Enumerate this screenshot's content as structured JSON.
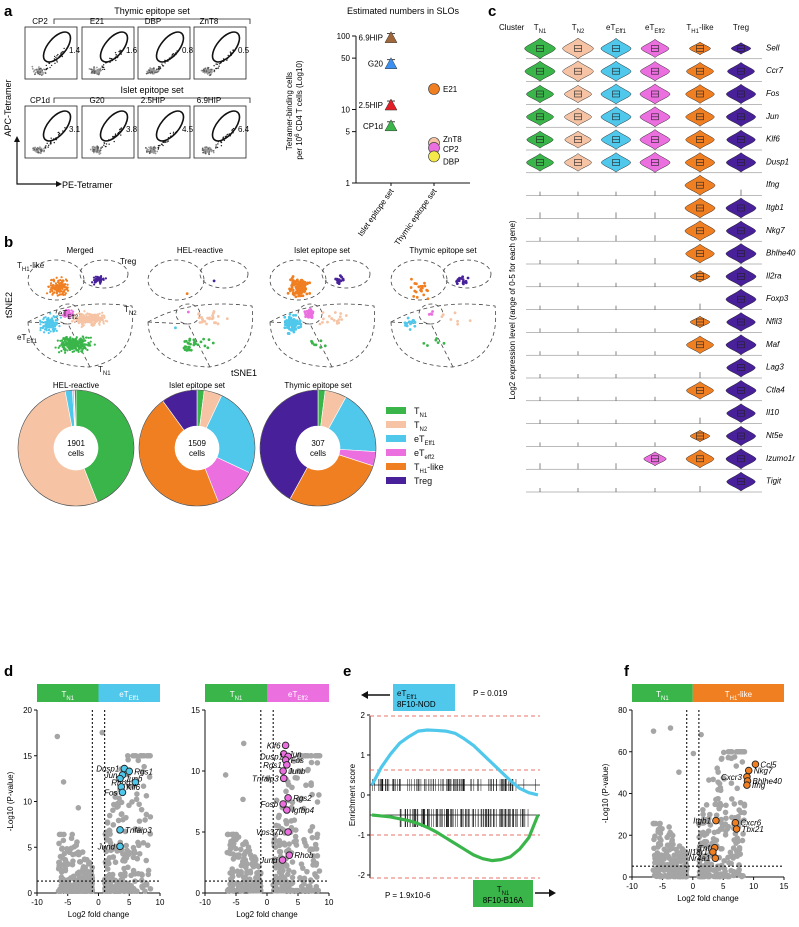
{
  "panels": {
    "a": "a",
    "b": "b",
    "c": "c",
    "d": "d",
    "e": "e",
    "f": "f"
  },
  "colors": {
    "TN1": "#3ab54a",
    "TN2": "#f6c4a4",
    "eTEff1": "#4fc8ec",
    "eTeff2": "#ec6fe0",
    "TH1like": "#f07f22",
    "Treg": "#47209a",
    "grey": "#a8a8a8",
    "dot": "#222222"
  },
  "panel_a": {
    "thymic_header": "Thymic epitope set",
    "islet_header": "Islet epitope set",
    "y_axis": "APC-Tetramer",
    "x_axis": "PE-Tetramer",
    "flow_plots": [
      {
        "name": "CP2",
        "pct": "1.4"
      },
      {
        "name": "E21",
        "pct": "1.6"
      },
      {
        "name": "DBP",
        "pct": "0.8"
      },
      {
        "name": "ZnT8",
        "pct": "0.5"
      },
      {
        "name": "CP1d",
        "pct": "3.1"
      },
      {
        "name": "G20",
        "pct": "3.8"
      },
      {
        "name": "2.5HIP",
        "pct": "4.5"
      },
      {
        "name": "6.9HIP",
        "pct": "6.4"
      }
    ]
  },
  "chart_data": [
    {
      "id": "a-estimated-numbers",
      "type": "scatter",
      "title": "Estimated numbers in SLOs",
      "ylabel": "Tetramer-binding cells per 10^6 CD4 T cells (Log10)",
      "yscale": "log",
      "ylim": [
        1,
        100
      ],
      "yticks": [
        1,
        5,
        10,
        50,
        100
      ],
      "categories": [
        "Islet epitope set",
        "Thymic epitope set"
      ],
      "points": [
        {
          "name": "6.9HIP",
          "category": "Islet epitope set",
          "y": 95,
          "color": "#a0683a",
          "shape": "triangle-up"
        },
        {
          "name": "G20",
          "category": "Islet epitope set",
          "y": 42,
          "color": "#3c8ff0",
          "shape": "triangle-up"
        },
        {
          "name": "2.5HIP",
          "category": "Islet epitope set",
          "y": 11.5,
          "color": "#e41e26",
          "shape": "triangle-up"
        },
        {
          "name": "CP1d",
          "category": "Islet epitope set",
          "y": 6,
          "color": "#3ab54a",
          "shape": "triangle-up"
        },
        {
          "name": "E21",
          "category": "Thymic epitope set",
          "y": 19,
          "color": "#f07f22",
          "shape": "circle"
        },
        {
          "name": "ZnT8",
          "category": "Thymic epitope set",
          "y": 3.5,
          "color": "#f6c4a4",
          "shape": "circle"
        },
        {
          "name": "CP2",
          "category": "Thymic epitope set",
          "y": 3.0,
          "color": "#ec6fe0",
          "shape": "circle"
        },
        {
          "name": "DBP",
          "category": "Thymic epitope set",
          "y": 2.3,
          "color": "#f5e94a",
          "shape": "circle"
        }
      ]
    },
    {
      "id": "b-cell-composition",
      "type": "pie",
      "categories": [
        "TN1",
        "TN2",
        "eTEff1",
        "eTeff2",
        "TH1-like",
        "Treg"
      ],
      "donuts": [
        {
          "name": "HEL-reactive",
          "total": "1901",
          "unit": "cells",
          "values": [
            0.44,
            0.53,
            0.02,
            0.004,
            0.002,
            0.004
          ]
        },
        {
          "name": "Islet epitope set",
          "total": "1509",
          "unit": "cells",
          "values": [
            0.02,
            0.05,
            0.25,
            0.12,
            0.46,
            0.1
          ]
        },
        {
          "name": "Thymic epitope set",
          "total": "307",
          "unit": "cells",
          "values": [
            0.02,
            0.06,
            0.18,
            0.04,
            0.28,
            0.42
          ]
        }
      ]
    },
    {
      "id": "c-violin-expression",
      "type": "heatmap",
      "ylabel": "Log2 expression level (range of 0-5 for each gene)",
      "clusters": [
        "TN1",
        "TN2",
        "eTEff1",
        "eTEff2",
        "TH1-like",
        "Treg"
      ],
      "genes": [
        "Sell",
        "Ccr7",
        "Fos",
        "Jun",
        "Klf6",
        "Dusp1",
        "Ifng",
        "Itgb1",
        "Nkg7",
        "Bhlhe40",
        "Il2ra",
        "Foxp3",
        "Nfil3",
        "Maf",
        "Lag3",
        "Ctla4",
        "Il10",
        "Nt5e",
        "Izumo1r",
        "Tigit"
      ],
      "expression": [
        [
          0.85,
          0.85,
          0.8,
          0.65,
          0.2,
          0.1
        ],
        [
          0.8,
          0.85,
          0.8,
          0.75,
          0.6,
          0.6
        ],
        [
          0.6,
          0.6,
          0.8,
          0.8,
          0.7,
          0.75
        ],
        [
          0.6,
          0.6,
          0.8,
          0.8,
          0.7,
          0.75
        ],
        [
          0.55,
          0.55,
          0.75,
          0.8,
          0.7,
          0.7
        ],
        [
          0.6,
          0.6,
          0.75,
          0.8,
          0.75,
          0.75
        ],
        [
          0,
          0,
          0,
          0.02,
          0.8,
          0.05
        ],
        [
          0.05,
          0.05,
          0.05,
          0.05,
          0.8,
          0.8
        ],
        [
          0,
          0,
          0.05,
          0.05,
          0.8,
          0.75
        ],
        [
          0,
          0,
          0.02,
          0.05,
          0.7,
          0.8
        ],
        [
          0,
          0,
          0,
          0,
          0.1,
          0.8
        ],
        [
          0,
          0,
          0,
          0,
          0.05,
          0.8
        ],
        [
          0,
          0,
          0,
          0,
          0.1,
          0.7
        ],
        [
          0,
          0,
          0,
          0,
          0.6,
          0.8
        ],
        [
          0,
          0,
          0,
          0,
          0.05,
          0.7
        ],
        [
          0,
          0,
          0,
          0,
          0.6,
          0.8
        ],
        [
          0,
          0,
          0,
          0,
          0.05,
          0.7
        ],
        [
          0,
          0,
          0,
          0,
          0.1,
          0.75
        ],
        [
          0.05,
          0.05,
          0.05,
          0.3,
          0.65,
          0.8
        ],
        [
          0,
          0,
          0,
          0,
          0.05,
          0.7
        ]
      ]
    },
    {
      "id": "d-volcano-eTEff1",
      "type": "scatter",
      "xlabel": "Log2 fold change",
      "ylabel": "-Log10 (P-value)",
      "left_group": "TN1",
      "right_group": "eTEff1",
      "xlim": [
        -10,
        10
      ],
      "ylim": [
        0,
        20
      ],
      "xticks": [
        -10,
        -5,
        0,
        5,
        10
      ],
      "yticks": [
        0,
        5,
        10,
        15,
        20
      ],
      "highlight_color": "#4fc8ec",
      "genes": [
        {
          "name": "Dusp1",
          "x": 4.2,
          "y": 13.6
        },
        {
          "name": "Rgs1",
          "x": 5.0,
          "y": 13.3
        },
        {
          "name": "Jun",
          "x": 3.9,
          "y": 12.9
        },
        {
          "name": "Junb",
          "x": 3.5,
          "y": 12.5
        },
        {
          "name": "Rhob",
          "x": 6.0,
          "y": 12.1
        },
        {
          "name": "Klf6",
          "x": 3.7,
          "y": 11.6
        },
        {
          "name": "Fos",
          "x": 3.9,
          "y": 11.0
        },
        {
          "name": "Tnfaip3",
          "x": 3.5,
          "y": 6.9
        },
        {
          "name": "Jund",
          "x": 3.5,
          "y": 5.1
        }
      ]
    },
    {
      "id": "d-volcano-eTeff2",
      "type": "scatter",
      "xlabel": "Log2 fold change",
      "ylabel": "",
      "left_group": "TN1",
      "right_group": "eTeff2",
      "xlim": [
        -10,
        10
      ],
      "ylim": [
        0,
        15
      ],
      "xticks": [
        -10,
        -5,
        0,
        5,
        10
      ],
      "yticks": [
        0,
        5,
        10,
        15
      ],
      "highlight_color": "#ec6fe0",
      "genes": [
        {
          "name": "Klf6",
          "x": 3.0,
          "y": 12.1
        },
        {
          "name": "Jun",
          "x": 2.7,
          "y": 11.4
        },
        {
          "name": "Dusp1",
          "x": 3.4,
          "y": 11.2
        },
        {
          "name": "Fos",
          "x": 3.0,
          "y": 10.9
        },
        {
          "name": "Rgs1",
          "x": 3.2,
          "y": 10.5
        },
        {
          "name": "Junb",
          "x": 2.6,
          "y": 10.0
        },
        {
          "name": "Tnfaip3",
          "x": 2.7,
          "y": 9.4
        },
        {
          "name": "Rgs2",
          "x": 3.4,
          "y": 7.8
        },
        {
          "name": "Fosb",
          "x": 2.6,
          "y": 7.3
        },
        {
          "name": "Igfbp4",
          "x": 3.2,
          "y": 6.8
        },
        {
          "name": "Vps37b",
          "x": 3.4,
          "y": 5.0
        },
        {
          "name": "Rhob",
          "x": 3.6,
          "y": 3.1
        },
        {
          "name": "Jund",
          "x": 2.5,
          "y": 2.7
        }
      ]
    },
    {
      "id": "e-gsea",
      "type": "line",
      "ylabel": "Enrichment score",
      "series": [
        {
          "name": "eTEff1 8F10-NOD",
          "p_value": "P = 0.019",
          "color": "#4fc8ec",
          "y": [
            0,
            0.8,
            1.4,
            1.9,
            2.2,
            2.45,
            2.5,
            2.48,
            2.45,
            2.35,
            2.1,
            1.8,
            1.4,
            1.0,
            0.6,
            0.2,
            -0.15,
            -0.35,
            -0.45
          ]
        },
        {
          "name": "TN1 8F10-B16A",
          "p_value": "P = 1.9x10-6",
          "color": "#3ab54a",
          "y": [
            0,
            -0.05,
            -0.1,
            -0.2,
            -0.3,
            -0.45,
            -0.65,
            -0.9,
            -1.2,
            -1.5,
            -1.8,
            -2.1,
            -2.3,
            -2.4,
            -2.35,
            -2.2,
            -1.8,
            -1.2,
            0
          ]
        }
      ],
      "yticks": [
        -2,
        -1,
        0,
        1,
        2
      ]
    },
    {
      "id": "f-volcano-TH1like",
      "type": "scatter",
      "xlabel": "Log2 fold change",
      "ylabel": "-Log10 (P-value)",
      "left_group": "TN1",
      "right_group": "TH1-like",
      "xlim": [
        -10,
        15
      ],
      "ylim": [
        0,
        80
      ],
      "xticks": [
        -10,
        -5,
        0,
        5,
        10,
        15
      ],
      "yticks": [
        0,
        20,
        40,
        60,
        80
      ],
      "highlight_color": "#f07f22",
      "genes": [
        {
          "name": "Ccl5",
          "x": 10.3,
          "y": 54
        },
        {
          "name": "Nkg7",
          "x": 9.2,
          "y": 51
        },
        {
          "name": "Cxcr3",
          "x": 8.9,
          "y": 48
        },
        {
          "name": "Bhlhe40",
          "x": 9.0,
          "y": 46
        },
        {
          "name": "Ifng",
          "x": 8.9,
          "y": 44
        },
        {
          "name": "Itgb1",
          "x": 3.8,
          "y": 27
        },
        {
          "name": "Cxcr6",
          "x": 7.0,
          "y": 26
        },
        {
          "name": "Tbx21",
          "x": 7.2,
          "y": 23
        },
        {
          "name": "Tnf",
          "x": 3.6,
          "y": 14
        },
        {
          "name": "Il18r1",
          "x": 3.3,
          "y": 12
        },
        {
          "name": "Nr4a1",
          "x": 3.7,
          "y": 9
        }
      ]
    }
  ],
  "panel_b": {
    "tsne_titles": [
      "Merged",
      "HEL-reactive",
      "Islet epitope set",
      "Thymic epitope set"
    ],
    "cluster_labels": {
      "th1": "TH1-like",
      "treg": "Treg",
      "teff2": "eTEff2",
      "tn2": "TN2",
      "teff1": "eTEff1",
      "tn1": "TN1"
    },
    "ylabel": "tSNE2",
    "xlabel": "tSNE1",
    "legend": [
      {
        "key": "TN1",
        "main": "T",
        "sub": "N1"
      },
      {
        "key": "TN2",
        "main": "T",
        "sub": "N2"
      },
      {
        "key": "eTEff1",
        "main": "eT",
        "sub": "Eff1"
      },
      {
        "key": "eTeff2",
        "main": "eT",
        "sub": "eff2"
      },
      {
        "key": "TH1like",
        "main": "T",
        "sub": "H1",
        "suffix": "-like"
      },
      {
        "key": "Treg",
        "main": "Treg",
        "sub": ""
      }
    ]
  },
  "panel_c": {
    "cluster_header": "Cluster",
    "cluster_labels": [
      {
        "main": "T",
        "sub": "N1"
      },
      {
        "main": "T",
        "sub": "N2"
      },
      {
        "main": "eT",
        "sub": "Eff1"
      },
      {
        "main": "eT",
        "sub": "Eff2"
      },
      {
        "main": "T",
        "sub": "H1",
        "suffix": "-like"
      },
      {
        "main": "Treg",
        "sub": ""
      }
    ]
  },
  "panel_e": {
    "top_label_1": "eT",
    "top_label_sub": "Eff1",
    "top_label_2": "8F10-NOD",
    "bottom_label_1": "T",
    "bottom_label_sub": "N1",
    "bottom_label_2": "8F10-B16A"
  }
}
